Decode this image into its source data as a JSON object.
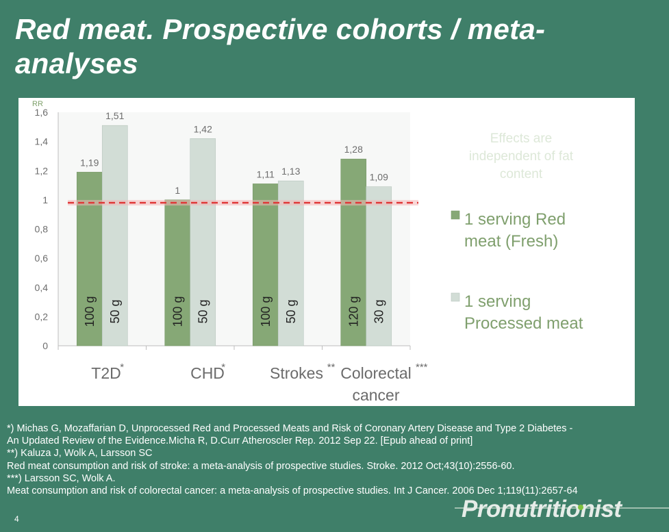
{
  "title": "Red meat. Prospective cohorts / meta-analyses",
  "slide_number": "4",
  "brand": "Pronutritionist",
  "colors": {
    "background": "#3f7f69",
    "fresh": "#86a876",
    "processed": "#d2ddd6",
    "reference_line": "#e03a3a",
    "axis_text": "#6d6d6d"
  },
  "chart_data": {
    "type": "bar",
    "ylabel": "RR",
    "ylim": [
      0,
      1.6
    ],
    "yticks": [
      "0",
      "0,2",
      "0,4",
      "0,6",
      "0,8",
      "1",
      "1,2",
      "1,4",
      "1,6"
    ],
    "categories": [
      {
        "name": "T2D",
        "mark": "*"
      },
      {
        "name": "CHD",
        "mark": "*"
      },
      {
        "name": "Strokes",
        "mark": "**"
      },
      {
        "name": "Colorectal cancer",
        "mark": "***"
      }
    ],
    "series": [
      {
        "name": "1 serving Red meat (Fresh)",
        "values": [
          1.19,
          1.0,
          1.11,
          1.28
        ],
        "value_labels": [
          "1,19",
          "1",
          "1,11",
          "1,28"
        ],
        "portion_labels": [
          "100 g",
          "100 g",
          "100 g",
          "120 g"
        ]
      },
      {
        "name": "1 serving Processed meat",
        "values": [
          1.51,
          1.42,
          1.13,
          1.09
        ],
        "value_labels": [
          "1,51",
          "1,42",
          "1,13",
          "1,09"
        ],
        "portion_labels": [
          "50 g",
          "50 g",
          "50 g",
          "30 g"
        ]
      }
    ],
    "reference_line": 0.98,
    "annotation": "Effects are independent of fat content",
    "legend_position": "right"
  },
  "footnotes": [
    "*) Michas G, Mozaffarian D, Unprocessed Red and Processed Meats and Risk of Coronary Artery Disease and Type 2 Diabetes -",
    "An Updated Review of the Evidence.Micha R, D.Curr Atheroscler Rep. 2012 Sep 22. [Epub ahead of print]",
    "**) Kaluza J, Wolk A, Larsson SC",
    "Red meat consumption and risk of stroke: a meta-analysis of prospective studies. Stroke. 2012 Oct;43(10):2556-60.",
    "***) Larsson SC, Wolk A.",
    "Meat consumption and risk of colorectal cancer: a meta-analysis of prospective studies. Int J Cancer. 2006 Dec 1;119(11):2657-64"
  ]
}
